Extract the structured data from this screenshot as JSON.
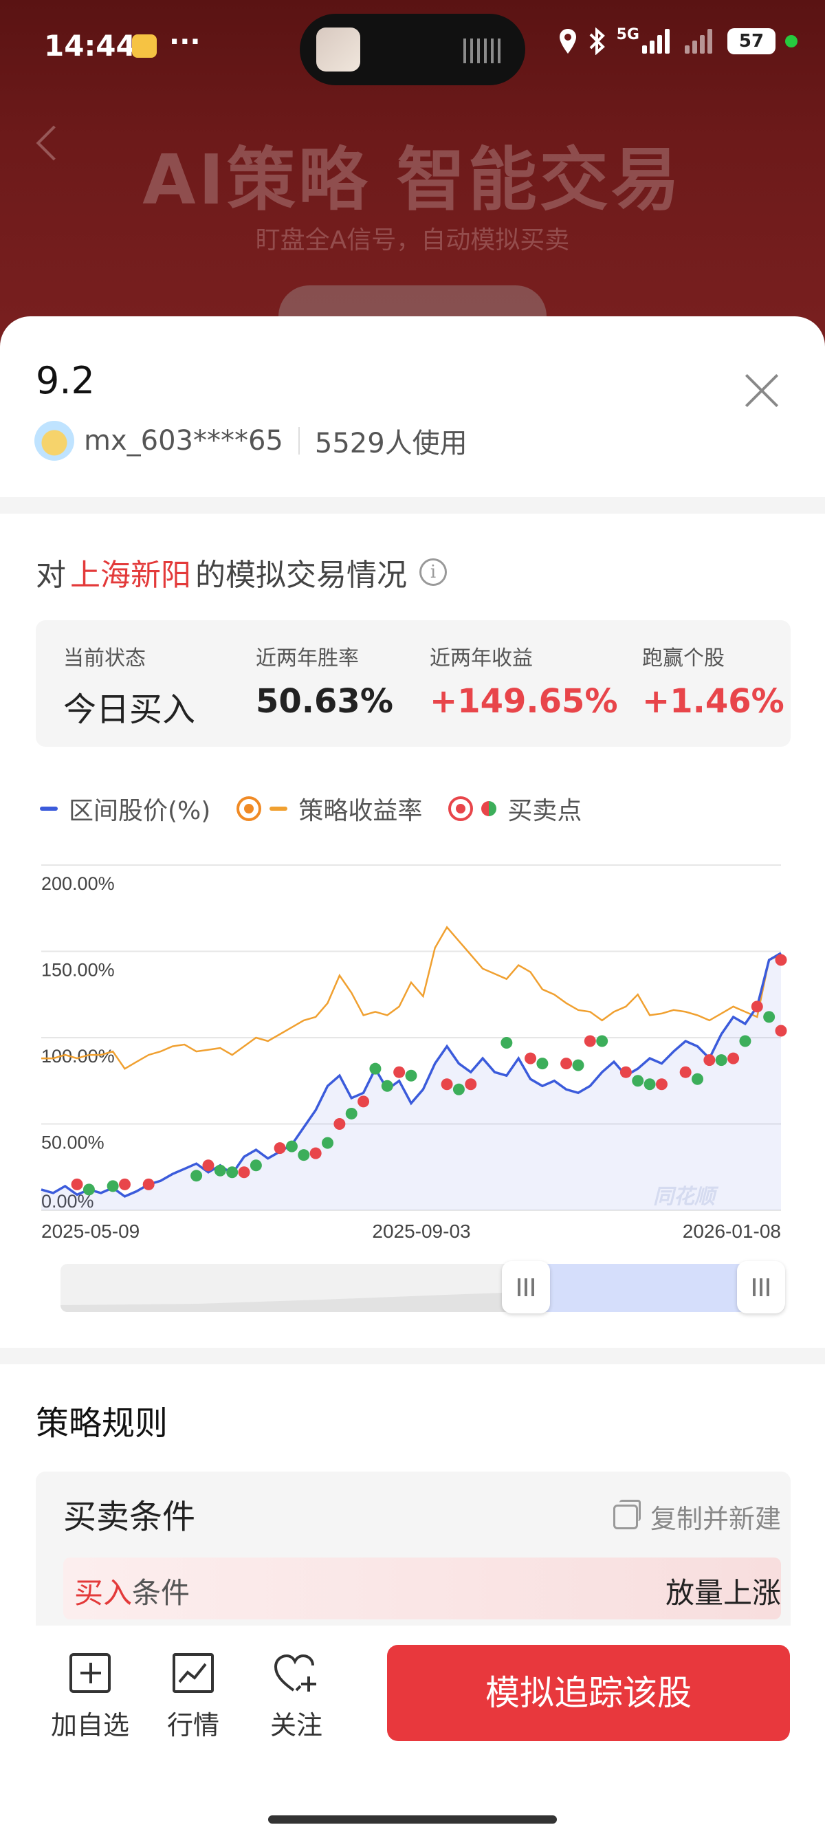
{
  "status_bar": {
    "time": "14:44",
    "dots": "···",
    "network": "5G",
    "battery": "57"
  },
  "hero": {
    "title": "AI策略 智能交易",
    "subtitle": "盯盘全A信号，自动模拟买卖"
  },
  "sheet": {
    "title": "9.2",
    "user": "mx_603****65",
    "users_count": "5529人使用"
  },
  "section": {
    "prefix": "对",
    "stock": "上海新阳",
    "suffix": "的模拟交易情况",
    "info_icon": "i"
  },
  "stats": [
    {
      "label": "当前状态",
      "value": "今日买入"
    },
    {
      "label": "近两年胜率",
      "value": "50.63%"
    },
    {
      "label": "近两年收益",
      "value": "+149.65%"
    },
    {
      "label": "跑赢个股",
      "value": "+1.46%"
    }
  ],
  "legend": {
    "price": "区间股价(%)",
    "strategy": "策略收益率",
    "trades": "买卖点"
  },
  "colors": {
    "price": "#3b5bdb",
    "strategy": "#f0a030",
    "buy": "#e8454a",
    "sell": "#3cae5a",
    "accent": "#e8383d"
  },
  "chart_data": {
    "type": "line",
    "y_ticks": [
      "200.00%",
      "150.00%",
      "100.00%",
      "50.00%",
      "0.00%"
    ],
    "ylim": [
      0,
      200
    ],
    "x_ticks": [
      "2025-05-09",
      "2025-09-03",
      "2026-01-08"
    ],
    "watermark": "同花顺",
    "series": [
      {
        "name": "区间股价(%)",
        "values": [
          12,
          10,
          14,
          9,
          12,
          10,
          13,
          8,
          11,
          15,
          17,
          21,
          24,
          27,
          22,
          26,
          21,
          31,
          35,
          30,
          34,
          38,
          48,
          58,
          72,
          78,
          65,
          68,
          82,
          70,
          75,
          62,
          70,
          85,
          95,
          85,
          80,
          88,
          80,
          78,
          88,
          76,
          72,
          75,
          70,
          68,
          72,
          80,
          86,
          78,
          82,
          88,
          85,
          92,
          98,
          95,
          88,
          102,
          112,
          108,
          118,
          145,
          149
        ]
      },
      {
        "name": "策略收益率",
        "values": [
          88,
          88,
          90,
          88,
          90,
          90,
          92,
          82,
          86,
          90,
          92,
          95,
          96,
          92,
          93,
          94,
          90,
          95,
          100,
          98,
          102,
          106,
          110,
          112,
          120,
          136,
          126,
          113,
          115,
          113,
          118,
          132,
          124,
          152,
          164,
          156,
          148,
          140,
          137,
          134,
          142,
          138,
          128,
          125,
          120,
          116,
          115,
          110,
          115,
          118,
          125,
          113,
          114,
          116,
          115,
          113,
          110,
          114,
          118,
          115,
          112,
          145,
          148
        ]
      }
    ],
    "trade_points": [
      {
        "x": 3,
        "y": 15,
        "type": "buy"
      },
      {
        "x": 4,
        "y": 12,
        "type": "sell"
      },
      {
        "x": 6,
        "y": 14,
        "type": "sell"
      },
      {
        "x": 7,
        "y": 15,
        "type": "buy"
      },
      {
        "x": 9,
        "y": 15,
        "type": "buy"
      },
      {
        "x": 13,
        "y": 20,
        "type": "sell"
      },
      {
        "x": 14,
        "y": 26,
        "type": "buy"
      },
      {
        "x": 15,
        "y": 23,
        "type": "sell"
      },
      {
        "x": 16,
        "y": 22,
        "type": "sell"
      },
      {
        "x": 17,
        "y": 22,
        "type": "buy"
      },
      {
        "x": 18,
        "y": 26,
        "type": "sell"
      },
      {
        "x": 20,
        "y": 36,
        "type": "buy"
      },
      {
        "x": 21,
        "y": 37,
        "type": "sell"
      },
      {
        "x": 22,
        "y": 32,
        "type": "sell"
      },
      {
        "x": 23,
        "y": 33,
        "type": "buy"
      },
      {
        "x": 24,
        "y": 39,
        "type": "sell"
      },
      {
        "x": 25,
        "y": 50,
        "type": "buy"
      },
      {
        "x": 26,
        "y": 56,
        "type": "sell"
      },
      {
        "x": 27,
        "y": 63,
        "type": "buy"
      },
      {
        "x": 28,
        "y": 82,
        "type": "sell"
      },
      {
        "x": 29,
        "y": 72,
        "type": "sell"
      },
      {
        "x": 30,
        "y": 80,
        "type": "buy"
      },
      {
        "x": 31,
        "y": 78,
        "type": "sell"
      },
      {
        "x": 34,
        "y": 73,
        "type": "buy"
      },
      {
        "x": 35,
        "y": 70,
        "type": "sell"
      },
      {
        "x": 36,
        "y": 73,
        "type": "buy"
      },
      {
        "x": 39,
        "y": 97,
        "type": "sell"
      },
      {
        "x": 41,
        "y": 88,
        "type": "buy"
      },
      {
        "x": 42,
        "y": 85,
        "type": "sell"
      },
      {
        "x": 44,
        "y": 85,
        "type": "buy"
      },
      {
        "x": 45,
        "y": 84,
        "type": "sell"
      },
      {
        "x": 46,
        "y": 98,
        "type": "buy"
      },
      {
        "x": 47,
        "y": 98,
        "type": "sell"
      },
      {
        "x": 49,
        "y": 80,
        "type": "buy"
      },
      {
        "x": 50,
        "y": 75,
        "type": "sell"
      },
      {
        "x": 51,
        "y": 73,
        "type": "sell"
      },
      {
        "x": 52,
        "y": 73,
        "type": "buy"
      },
      {
        "x": 54,
        "y": 80,
        "type": "buy"
      },
      {
        "x": 55,
        "y": 76,
        "type": "sell"
      },
      {
        "x": 56,
        "y": 87,
        "type": "buy"
      },
      {
        "x": 57,
        "y": 87,
        "type": "sell"
      },
      {
        "x": 58,
        "y": 88,
        "type": "buy"
      },
      {
        "x": 59,
        "y": 98,
        "type": "sell"
      },
      {
        "x": 60,
        "y": 118,
        "type": "buy"
      },
      {
        "x": 61,
        "y": 112,
        "type": "sell"
      },
      {
        "x": 62,
        "y": 104,
        "type": "buy"
      },
      {
        "x": 62,
        "y": 145,
        "type": "buy"
      }
    ]
  },
  "rules": {
    "title": "策略规则",
    "conditions_title": "买卖条件",
    "copy_label": "复制并新建",
    "buy_label_red": "买入",
    "buy_label_rest": "条件",
    "buy_value": "放量上涨"
  },
  "bottom": {
    "add_watch": "加自选",
    "market": "行情",
    "follow": "关注",
    "main_button": "模拟追踪该股"
  }
}
